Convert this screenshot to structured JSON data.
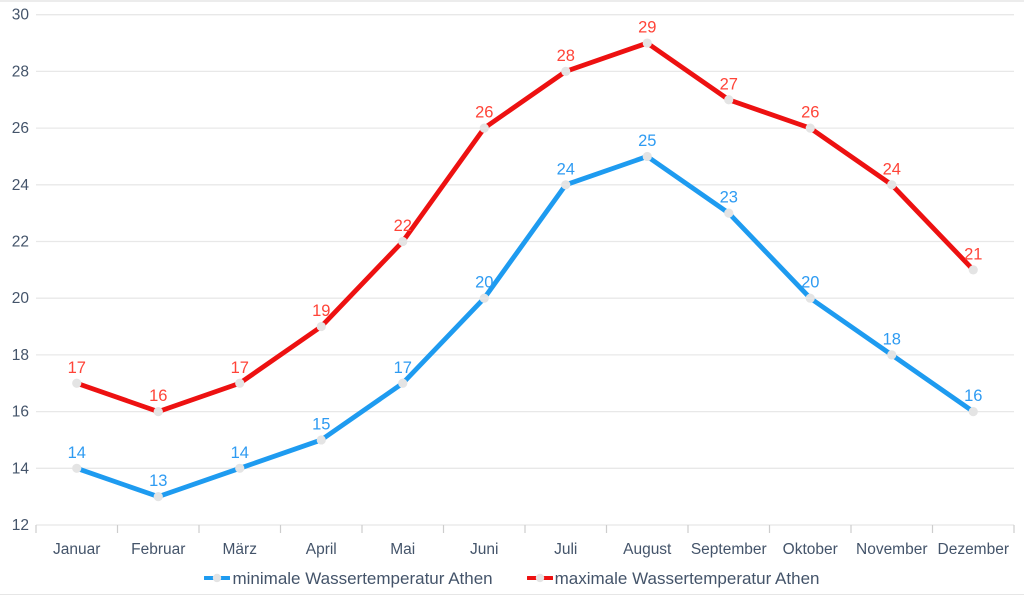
{
  "chart_data": {
    "type": "line",
    "categories": [
      "Januar",
      "Februar",
      "März",
      "April",
      "Mai",
      "Juni",
      "Juli",
      "August",
      "September",
      "Oktober",
      "November",
      "Dezember"
    ],
    "series": [
      {
        "name": "minimale Wassertemperatur Athen",
        "values": [
          14,
          13,
          14,
          15,
          17,
          20,
          24,
          25,
          23,
          20,
          18,
          16
        ],
        "color": "#1E9BF0",
        "label_color": "#2E9BF2"
      },
      {
        "name": "maximale Wassertemperatur Athen",
        "values": [
          17,
          16,
          17,
          19,
          22,
          26,
          28,
          29,
          27,
          26,
          24,
          21
        ],
        "color": "#ED1111",
        "label_color": "#FF4438"
      }
    ],
    "title": "",
    "xlabel": "",
    "ylabel": "",
    "ylim": [
      12,
      30
    ],
    "yticks": [
      12,
      14,
      16,
      18,
      20,
      22,
      24,
      26,
      28,
      30
    ],
    "grid": true,
    "legend_position": "bottom",
    "marker_color": "#E4E4E4",
    "axis_text_color": "#44546A",
    "gridline_color": "#E8E8E8",
    "tick_color": "#CDCDCD"
  }
}
